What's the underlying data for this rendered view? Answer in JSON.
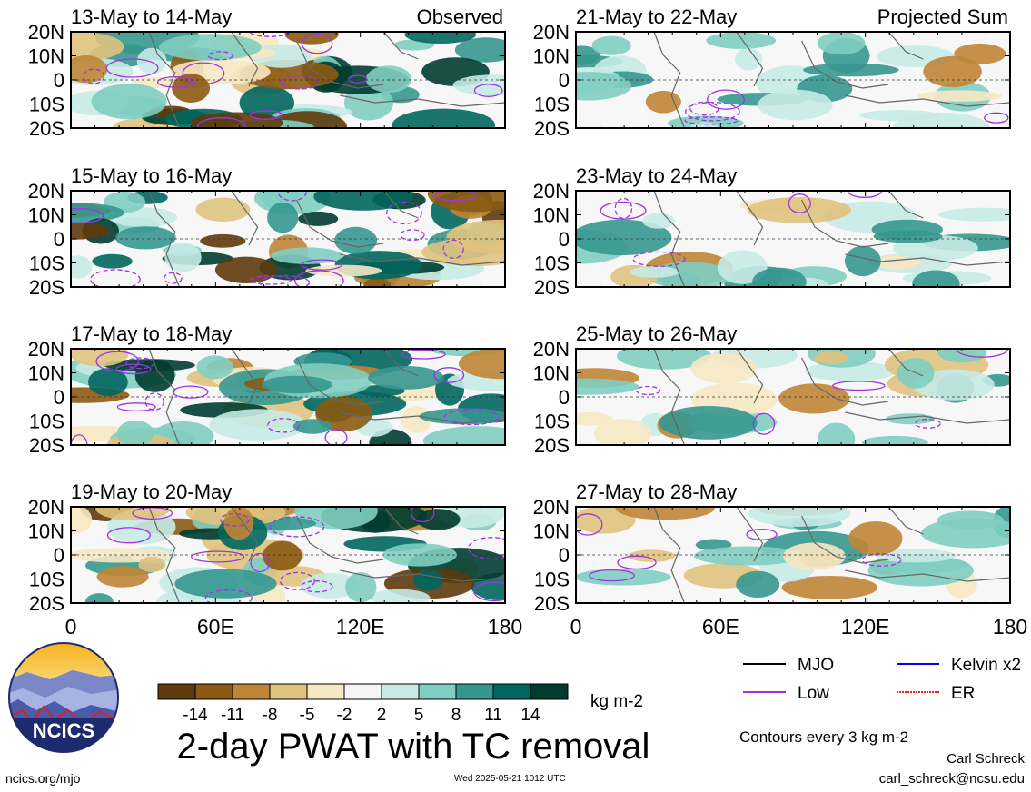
{
  "panels": [
    {
      "period": "13-May to 14-May",
      "tag": "Observed"
    },
    {
      "period": "21-May to 22-May",
      "tag": "Projected Sum"
    },
    {
      "period": "15-May to 16-May",
      "tag": ""
    },
    {
      "period": "23-May to 24-May",
      "tag": ""
    },
    {
      "period": "17-May to 18-May",
      "tag": ""
    },
    {
      "period": "25-May to 26-May",
      "tag": ""
    },
    {
      "period": "19-May to 20-May",
      "tag": ""
    },
    {
      "period": "27-May to 28-May",
      "tag": ""
    }
  ],
  "lat_labels": [
    "20N",
    "10N",
    "0",
    "10S",
    "20S"
  ],
  "lon_labels": [
    "0",
    "60E",
    "120E",
    "180"
  ],
  "colorbar": {
    "ticks": [
      "-14",
      "-11",
      "-8",
      "-5",
      "-2",
      "2",
      "5",
      "8",
      "11",
      "14"
    ],
    "colors": [
      "#5e3a0c",
      "#8c5a12",
      "#bf8536",
      "#dfc27d",
      "#f6e8c3",
      "#f5f5f5",
      "#c7eae5",
      "#80cdc1",
      "#35978f",
      "#01665e",
      "#003c30"
    ],
    "units": "kg m-2"
  },
  "legend": [
    {
      "label": "MJO",
      "color": "#000000",
      "style": "solid"
    },
    {
      "label": "Kelvin x2",
      "color": "#0000ee",
      "style": "solid"
    },
    {
      "label": "Low",
      "color": "#a033e0",
      "style": "solid"
    },
    {
      "label": "ER",
      "color": "#ee2222",
      "style": "dotted"
    }
  ],
  "contour_note": "Contours every 3 kg m-2",
  "title": "2-day PWAT with TC removal",
  "logo_text": "NCICS",
  "footer": {
    "url": "ncics.org/mjo",
    "timestamp": "Wed 2025-05-21 1012 UTC",
    "author": "Carl Schreck",
    "email": "carl_schreck@ncsu.edu"
  }
}
